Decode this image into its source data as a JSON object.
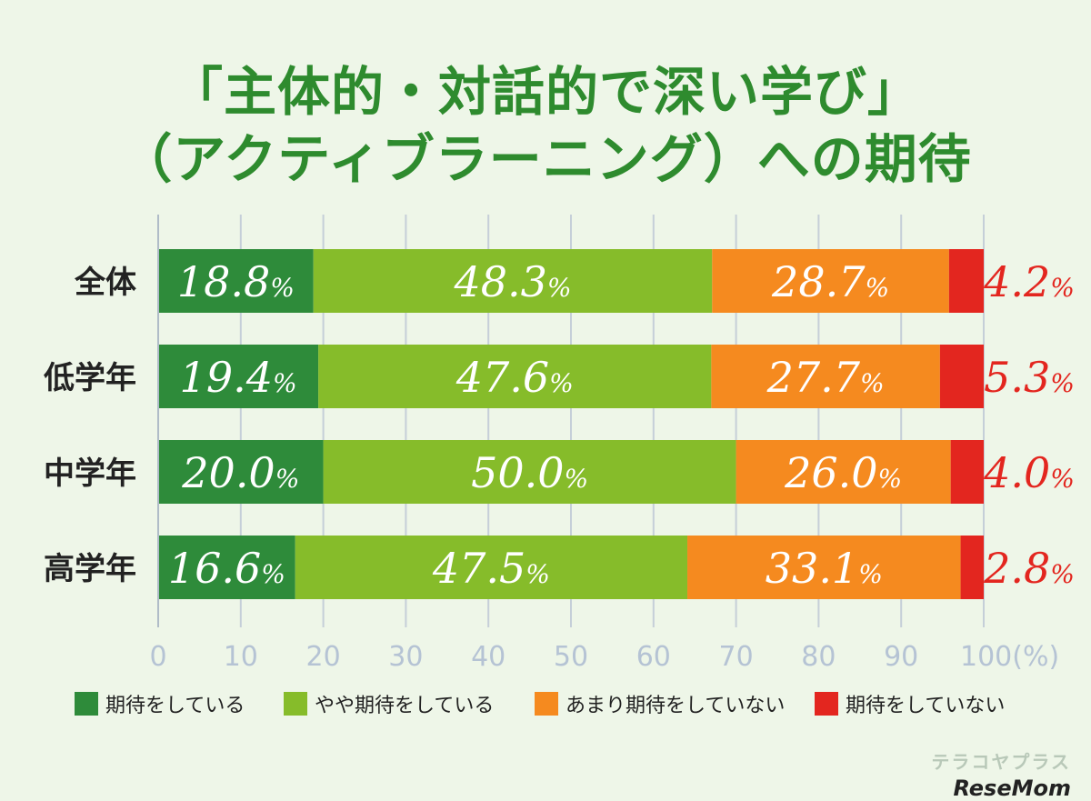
{
  "chart_data": {
    "type": "bar",
    "orientation": "horizontal",
    "stacked": true,
    "title": "「主体的・対話的で深い学び」（アクティブラーニング）への期待",
    "title_lines": [
      "「主体的・対話的で深い学び」",
      "（アクティブラーニング）への期待"
    ],
    "categories": [
      "全体",
      "低学年",
      "中学年",
      "高学年"
    ],
    "series": [
      {
        "name": "期待をしている",
        "color": "#2e8b3a",
        "values": [
          18.8,
          19.4,
          20.0,
          16.6
        ]
      },
      {
        "name": "やや期待をしている",
        "color": "#86bc2a",
        "values": [
          48.3,
          47.6,
          50.0,
          47.5
        ]
      },
      {
        "name": "あまり期待をしていない",
        "color": "#f58a1f",
        "values": [
          28.7,
          27.7,
          26.0,
          33.1
        ]
      },
      {
        "name": "期待をしていない",
        "color": "#e3261f",
        "values": [
          4.2,
          5.3,
          4.0,
          2.8
        ]
      }
    ],
    "value_suffix": "%",
    "label_color_inside": "#ffffff",
    "label_color_outside": "#e3261f",
    "xlim": [
      0,
      100
    ],
    "xticks": [
      0,
      10,
      20,
      30,
      40,
      50,
      60,
      70,
      80,
      90,
      100
    ],
    "xticks_labels": [
      "0",
      "10",
      "20",
      "30",
      "40",
      "50",
      "60",
      "70",
      "80",
      "90",
      "100(%)"
    ],
    "grid": true,
    "legend_position": "bottom"
  },
  "watermark": {
    "line1": "テラコヤプラス",
    "line2": "ReseMom"
  }
}
